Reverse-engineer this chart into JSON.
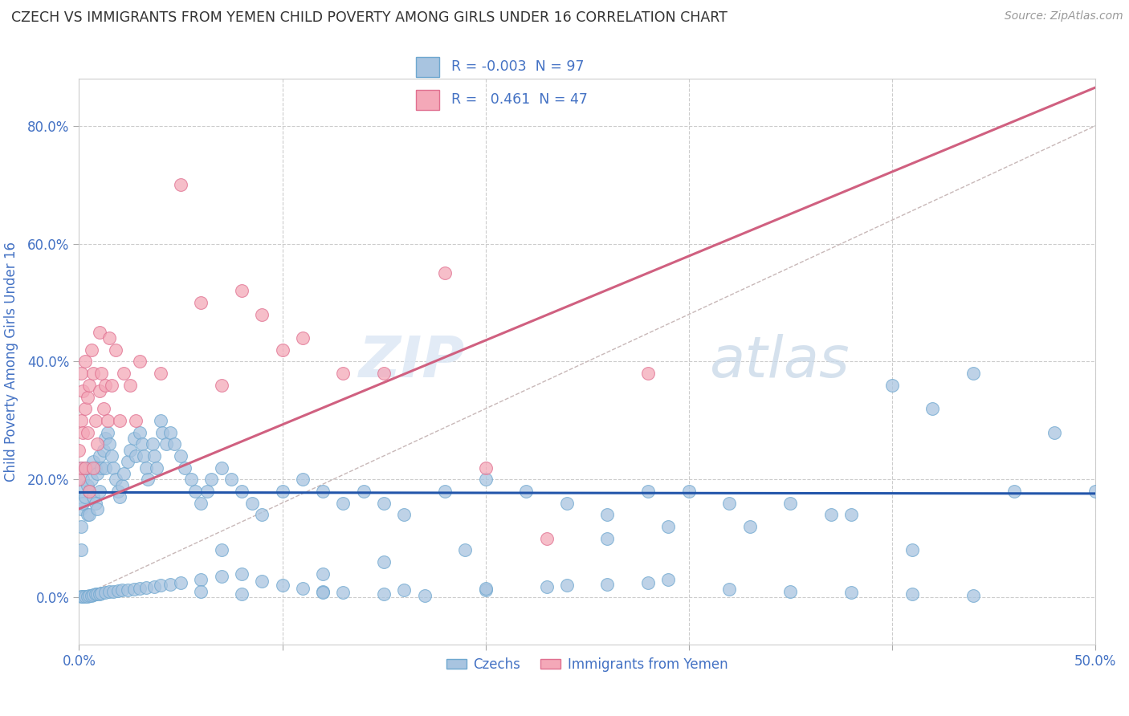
{
  "title": "CZECH VS IMMIGRANTS FROM YEMEN CHILD POVERTY AMONG GIRLS UNDER 16 CORRELATION CHART",
  "source": "Source: ZipAtlas.com",
  "ylabel": "Child Poverty Among Girls Under 16",
  "xlim": [
    0.0,
    0.5
  ],
  "ylim": [
    -0.08,
    0.88
  ],
  "xticks": [
    0.0,
    0.1,
    0.2,
    0.3,
    0.4,
    0.5
  ],
  "xtick_labels": [
    "0.0%",
    "",
    "",
    "",
    "",
    "50.0%"
  ],
  "yticks": [
    0.0,
    0.2,
    0.4,
    0.6,
    0.8
  ],
  "ytick_labels": [
    "0.0%",
    "20.0%",
    "40.0%",
    "60.0%",
    "80.0%"
  ],
  "czech_color": "#a8c4e0",
  "czech_edge_color": "#6fa8d0",
  "yemen_color": "#f4a8b8",
  "yemen_edge_color": "#e07090",
  "legend_czech_R": "-0.003",
  "legend_czech_N": "97",
  "legend_yemen_R": "0.461",
  "legend_yemen_N": "47",
  "trend_czech_color": "#2255aa",
  "trend_yemen_color": "#d06080",
  "trend_diag_color": "#c8b8b8",
  "title_color": "#404040",
  "axis_label_color": "#4472c4",
  "tick_color": "#4472c4",
  "watermark_zip": "ZIP",
  "watermark_atlas": "atlas",
  "background_color": "#ffffff",
  "grid_color": "#cccccc",
  "czech_x": [
    0.001,
    0.001,
    0.001,
    0.001,
    0.001,
    0.002,
    0.002,
    0.003,
    0.003,
    0.004,
    0.004,
    0.005,
    0.005,
    0.005,
    0.006,
    0.007,
    0.007,
    0.008,
    0.008,
    0.009,
    0.009,
    0.01,
    0.01,
    0.011,
    0.012,
    0.013,
    0.013,
    0.014,
    0.015,
    0.016,
    0.017,
    0.018,
    0.019,
    0.02,
    0.021,
    0.022,
    0.024,
    0.025,
    0.027,
    0.028,
    0.03,
    0.031,
    0.032,
    0.033,
    0.034,
    0.036,
    0.037,
    0.038,
    0.04,
    0.041,
    0.043,
    0.045,
    0.047,
    0.05,
    0.052,
    0.055,
    0.057,
    0.06,
    0.063,
    0.065,
    0.07,
    0.075,
    0.08,
    0.085,
    0.09,
    0.1,
    0.11,
    0.12,
    0.13,
    0.14,
    0.15,
    0.16,
    0.18,
    0.2,
    0.22,
    0.24,
    0.26,
    0.28,
    0.3,
    0.32,
    0.35,
    0.37,
    0.4,
    0.42,
    0.44,
    0.46,
    0.48,
    0.5,
    0.38,
    0.29,
    0.41,
    0.26,
    0.33,
    0.19,
    0.15,
    0.12,
    0.07
  ],
  "czech_y": [
    0.22,
    0.18,
    0.15,
    0.12,
    0.08,
    0.2,
    0.16,
    0.22,
    0.17,
    0.19,
    0.14,
    0.22,
    0.18,
    0.14,
    0.2,
    0.23,
    0.17,
    0.22,
    0.16,
    0.21,
    0.15,
    0.24,
    0.18,
    0.22,
    0.25,
    0.27,
    0.22,
    0.28,
    0.26,
    0.24,
    0.22,
    0.2,
    0.18,
    0.17,
    0.19,
    0.21,
    0.23,
    0.25,
    0.27,
    0.24,
    0.28,
    0.26,
    0.24,
    0.22,
    0.2,
    0.26,
    0.24,
    0.22,
    0.3,
    0.28,
    0.26,
    0.28,
    0.26,
    0.24,
    0.22,
    0.2,
    0.18,
    0.16,
    0.18,
    0.2,
    0.22,
    0.2,
    0.18,
    0.16,
    0.14,
    0.18,
    0.2,
    0.18,
    0.16,
    0.18,
    0.16,
    0.14,
    0.18,
    0.2,
    0.18,
    0.16,
    0.14,
    0.18,
    0.18,
    0.16,
    0.16,
    0.14,
    0.36,
    0.32,
    0.38,
    0.18,
    0.28,
    0.18,
    0.14,
    0.12,
    0.08,
    0.1,
    0.12,
    0.08,
    0.06,
    0.04,
    0.08
  ],
  "czech_y_below": [
    0.001,
    0.001,
    0.002,
    0.002,
    0.003,
    0.003,
    0.004,
    0.005,
    0.005,
    0.006,
    0.007,
    0.008,
    0.009,
    0.01,
    0.011,
    0.012,
    0.013,
    0.014,
    0.015,
    0.016,
    0.018,
    0.02,
    0.022,
    0.025,
    0.03,
    0.035,
    0.04,
    0.028,
    0.02,
    0.015,
    0.01,
    0.008,
    0.005,
    0.003,
    0.012,
    0.018,
    0.022,
    0.03,
    0.014,
    0.01,
    0.008,
    0.005,
    0.003,
    0.015,
    0.02,
    0.025,
    0.01,
    0.005,
    0.008,
    0.012
  ],
  "czech_x_below": [
    0.001,
    0.002,
    0.003,
    0.004,
    0.005,
    0.006,
    0.007,
    0.008,
    0.009,
    0.01,
    0.011,
    0.013,
    0.015,
    0.017,
    0.019,
    0.021,
    0.024,
    0.027,
    0.03,
    0.033,
    0.037,
    0.04,
    0.045,
    0.05,
    0.06,
    0.07,
    0.08,
    0.09,
    0.1,
    0.11,
    0.12,
    0.13,
    0.15,
    0.17,
    0.2,
    0.23,
    0.26,
    0.29,
    0.32,
    0.35,
    0.38,
    0.41,
    0.44,
    0.2,
    0.24,
    0.28,
    0.06,
    0.08,
    0.12,
    0.16
  ],
  "yemen_x": [
    0.0,
    0.0,
    0.001,
    0.001,
    0.001,
    0.002,
    0.002,
    0.003,
    0.003,
    0.003,
    0.004,
    0.004,
    0.005,
    0.005,
    0.006,
    0.007,
    0.007,
    0.008,
    0.009,
    0.01,
    0.01,
    0.011,
    0.012,
    0.013,
    0.014,
    0.015,
    0.016,
    0.018,
    0.02,
    0.022,
    0.025,
    0.028,
    0.03,
    0.04,
    0.05,
    0.06,
    0.07,
    0.08,
    0.09,
    0.1,
    0.11,
    0.13,
    0.15,
    0.18,
    0.2,
    0.23,
    0.28
  ],
  "yemen_y": [
    0.2,
    0.25,
    0.22,
    0.3,
    0.38,
    0.28,
    0.35,
    0.32,
    0.4,
    0.22,
    0.34,
    0.28,
    0.36,
    0.18,
    0.42,
    0.38,
    0.22,
    0.3,
    0.26,
    0.35,
    0.45,
    0.38,
    0.32,
    0.36,
    0.3,
    0.44,
    0.36,
    0.42,
    0.3,
    0.38,
    0.36,
    0.3,
    0.4,
    0.38,
    0.7,
    0.5,
    0.36,
    0.52,
    0.48,
    0.42,
    0.44,
    0.38,
    0.38,
    0.55,
    0.22,
    0.1,
    0.38
  ]
}
